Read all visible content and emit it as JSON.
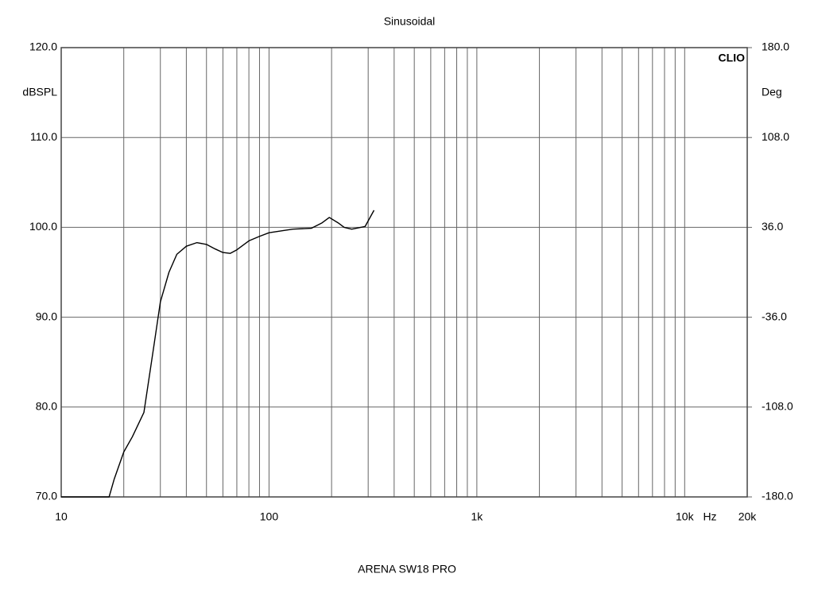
{
  "chart_data": {
    "type": "line",
    "title": "Sinusoidal",
    "caption": "ARENA SW18 PRO",
    "annotation": "CLIO",
    "y_label": "dBSPL",
    "y2_label": "Deg",
    "x_unit": "Hz",
    "x_scale": "log",
    "grid": true,
    "xlim": [
      10,
      20000
    ],
    "xticks": [
      10,
      100,
      {
        "value": 1000,
        "label": "1k"
      },
      {
        "value": 10000,
        "label": "10k"
      },
      {
        "value": 20000,
        "label": "20k"
      }
    ],
    "xminor_ticks": [
      20,
      30,
      40,
      50,
      60,
      70,
      80,
      90,
      200,
      300,
      400,
      500,
      600,
      700,
      800,
      900,
      2000,
      3000,
      4000,
      5000,
      6000,
      7000,
      8000,
      9000
    ],
    "ylim": [
      70,
      120
    ],
    "yticks": [
      {
        "value": 70,
        "label": "70.0"
      },
      {
        "value": 80,
        "label": "80.0"
      },
      {
        "value": 90,
        "label": "90.0"
      },
      {
        "value": 100,
        "label": "100.0"
      },
      {
        "value": 110,
        "label": "110.0"
      },
      {
        "value": 120,
        "label": "120.0"
      }
    ],
    "y2lim": [
      -180,
      180
    ],
    "y2ticks": [
      {
        "value": -180,
        "label": "-180.0"
      },
      {
        "value": -108,
        "label": "-108.0"
      },
      {
        "value": -36,
        "label": "-36.0"
      },
      {
        "value": 36,
        "label": "36.0"
      },
      {
        "value": 108,
        "label": "108.0"
      },
      {
        "value": 180,
        "label": "180.0"
      }
    ],
    "x": [
      10,
      17,
      18,
      20,
      22,
      25,
      28,
      30,
      33,
      36,
      40,
      45,
      50,
      55,
      60,
      65,
      70,
      80,
      90,
      100,
      130,
      160,
      180,
      195,
      215,
      230,
      250,
      290,
      320
    ],
    "series": [
      {
        "color": "#000000",
        "values": [
          70,
          70,
          72,
          75,
          76.7,
          79.4,
          87,
          91.7,
          95,
          97,
          97.9,
          98.3,
          98.1,
          97.6,
          97.2,
          97.1,
          97.5,
          98.5,
          99,
          99.4,
          99.8,
          99.9,
          100.5,
          101.1,
          100.5,
          100,
          99.8,
          100.1,
          101.9
        ]
      }
    ]
  }
}
